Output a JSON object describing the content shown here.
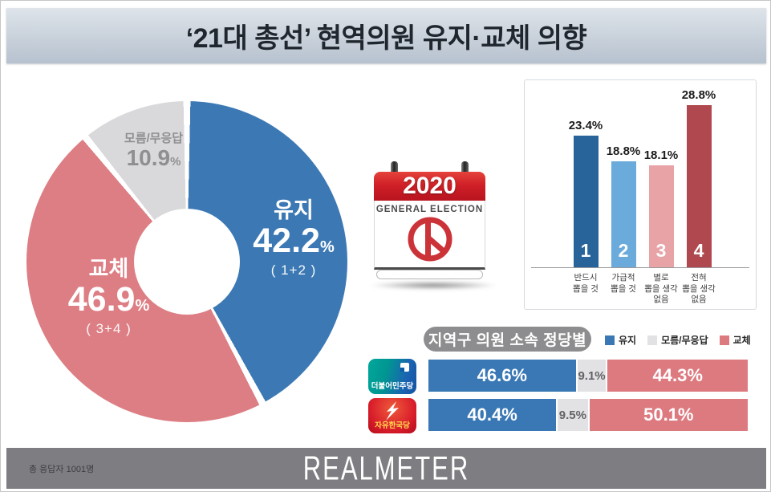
{
  "title": "‘21대 총선’ 현역의원 유지·교체 의향",
  "calendar": {
    "year": "2020",
    "subtitle": "GENERAL ELECTION"
  },
  "footer": {
    "respondents": "총 응답자 1001명",
    "logo": "REALMETER"
  },
  "chart_data": [
    {
      "type": "pie",
      "style": "donut",
      "start_angle_deg": 0,
      "direction": "clockwise",
      "slices": [
        {
          "label": "유지",
          "value": 42.2,
          "value_text": "42.2",
          "unit": "%",
          "sublabel": "( 1+2 )",
          "color": "#3c79b4"
        },
        {
          "label": "교체",
          "value": 46.9,
          "value_text": "46.9",
          "unit": "%",
          "sublabel": "( 3+4 )",
          "color": "#dd7e84"
        },
        {
          "label": "모름/무응답",
          "value": 10.9,
          "value_text": "10.9",
          "unit": "%",
          "sublabel": "",
          "color": "#d9d9db"
        }
      ]
    },
    {
      "type": "bar",
      "categories": [
        [
          "반드시",
          "뽑을 것"
        ],
        [
          "가급적",
          "뽑을 것"
        ],
        [
          "별로",
          "뽑을 생각",
          "없음"
        ],
        [
          "전혀",
          "뽑을 생각",
          "없음"
        ]
      ],
      "values": [
        23.4,
        18.8,
        18.1,
        28.8
      ],
      "value_labels": [
        "23.4%",
        "18.8%",
        "18.1%",
        "28.8%"
      ],
      "ranks": [
        "1",
        "2",
        "3",
        "4"
      ],
      "colors": [
        "#28639a",
        "#6aabdc",
        "#e8a3a7",
        "#b0494f"
      ],
      "ylim": [
        0,
        33
      ],
      "grid": false
    },
    {
      "type": "stacked-bar",
      "title": "지역구 의원 소속 정당별",
      "legend": [
        {
          "label": "유지",
          "color": "#3a78b5"
        },
        {
          "label": "모름/무응답",
          "color": "#e2e2e4"
        },
        {
          "label": "교체",
          "color": "#dd7a80"
        }
      ],
      "rows": [
        {
          "category": "더불어민주당",
          "values": [
            46.6,
            9.1,
            44.3
          ],
          "labels": [
            "46.6%",
            "9.1%",
            "44.3%"
          ]
        },
        {
          "category": "자유한국당",
          "values": [
            40.4,
            9.5,
            50.1
          ],
          "labels": [
            "40.4%",
            "9.5%",
            "50.1%"
          ]
        }
      ]
    }
  ]
}
